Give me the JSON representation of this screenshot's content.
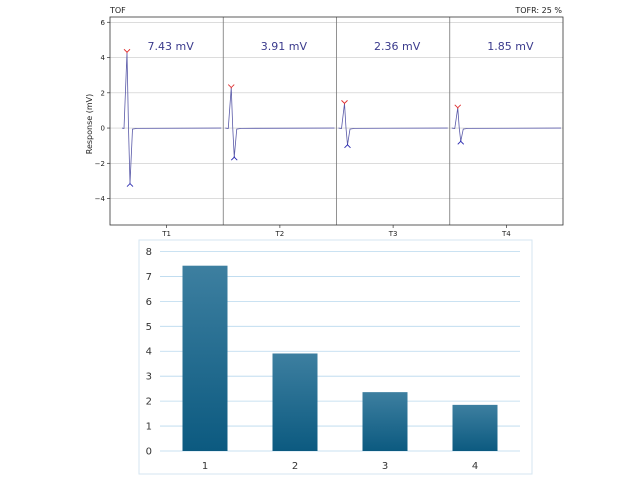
{
  "chart_data": [
    {
      "type": "line",
      "title_left": "TOF",
      "title_right": "TOFR: 25 %",
      "ylabel": "Response (mV)",
      "ylim": [
        -5.5,
        6.3
      ],
      "yticks": [
        6,
        4,
        2,
        0,
        -2,
        -4
      ],
      "ytick_labels": [
        "6",
        "4",
        "2",
        "0",
        "−2",
        "−4"
      ],
      "sections": [
        "T1",
        "T2",
        "T3",
        "T4"
      ],
      "amplitude_labels": [
        "7.43 mV",
        "3.91 mV",
        "2.36 mV",
        "1.85 mV"
      ],
      "peaks": [
        {
          "max": 4.3,
          "min": -3.15
        },
        {
          "max": 2.3,
          "min": -1.65
        },
        {
          "max": 1.4,
          "min": -0.95
        },
        {
          "max": 1.15,
          "min": -0.75
        }
      ],
      "colors": {
        "trace": "#5a5aa8",
        "max_marker": "#e03030",
        "min_marker": "#2a2ab0",
        "grid": "#c8c8c8"
      }
    },
    {
      "type": "bar",
      "categories": [
        "1",
        "2",
        "3",
        "4"
      ],
      "values": [
        7.43,
        3.91,
        2.36,
        1.85
      ],
      "ylim": [
        0,
        8.3
      ],
      "yticks": [
        "0",
        "1",
        "2",
        "3",
        "4",
        "5",
        "6",
        "7",
        "8"
      ],
      "colors": {
        "bar_top": "#3d7fa0",
        "bar_bottom": "#0c5a80",
        "grid": "#b8d8ee"
      }
    }
  ]
}
